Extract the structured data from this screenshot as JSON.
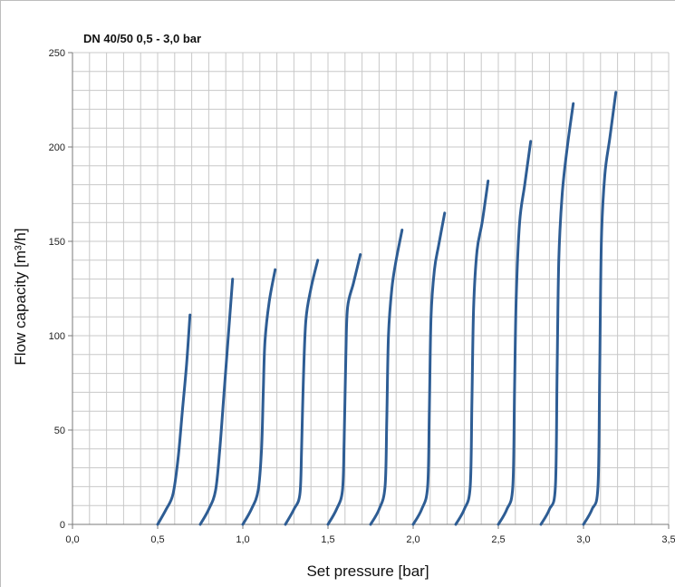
{
  "chart_data": {
    "type": "line",
    "title": "DN 40/50 0,5 - 3,0 bar",
    "xlabel": "Set pressure   [bar]",
    "ylabel": "Flow capacity   [m³/h]",
    "xlim": [
      0,
      3.5
    ],
    "ylim": [
      0,
      250
    ],
    "x_ticks": [
      0,
      0.5,
      1.0,
      1.5,
      2.0,
      2.5,
      3.0,
      3.5
    ],
    "x_tick_labels": [
      "0,0",
      "0,5",
      "1,0",
      "1,5",
      "2,0",
      "2,5",
      "3,0",
      "3,5"
    ],
    "y_ticks": [
      0,
      50,
      100,
      150,
      200,
      250
    ],
    "y_tick_labels": [
      "0",
      "50",
      "100",
      "150",
      "200",
      "250"
    ],
    "grid": true,
    "grid_minor_x": 0.1,
    "grid_minor_y": 10,
    "legend": "none",
    "line_color": "#2e5d94",
    "series": [
      {
        "points": [
          [
            0.5,
            0
          ],
          [
            0.55,
            8
          ],
          [
            0.59,
            16
          ],
          [
            0.62,
            35
          ],
          [
            0.645,
            60
          ],
          [
            0.67,
            85
          ],
          [
            0.69,
            111
          ]
        ]
      },
      {
        "points": [
          [
            0.75,
            0
          ],
          [
            0.8,
            8
          ],
          [
            0.84,
            18
          ],
          [
            0.865,
            40
          ],
          [
            0.89,
            70
          ],
          [
            0.915,
            100
          ],
          [
            0.94,
            130
          ]
        ]
      },
      {
        "points": [
          [
            1.0,
            0
          ],
          [
            1.05,
            8
          ],
          [
            1.09,
            18
          ],
          [
            1.11,
            40
          ],
          [
            1.12,
            70
          ],
          [
            1.13,
            97
          ],
          [
            1.155,
            118
          ],
          [
            1.19,
            135
          ]
        ]
      },
      {
        "points": [
          [
            1.25,
            0
          ],
          [
            1.3,
            8
          ],
          [
            1.335,
            16
          ],
          [
            1.345,
            40
          ],
          [
            1.355,
            75
          ],
          [
            1.37,
            108
          ],
          [
            1.4,
            125
          ],
          [
            1.44,
            140
          ]
        ]
      },
      {
        "points": [
          [
            1.5,
            0
          ],
          [
            1.55,
            8
          ],
          [
            1.585,
            18
          ],
          [
            1.595,
            45
          ],
          [
            1.605,
            90
          ],
          [
            1.615,
            115
          ],
          [
            1.65,
            128
          ],
          [
            1.69,
            143
          ]
        ]
      },
      {
        "points": [
          [
            1.75,
            0
          ],
          [
            1.8,
            8
          ],
          [
            1.835,
            20
          ],
          [
            1.845,
            55
          ],
          [
            1.855,
            100
          ],
          [
            1.875,
            125
          ],
          [
            1.9,
            140
          ],
          [
            1.935,
            156
          ]
        ]
      },
      {
        "points": [
          [
            2.0,
            0
          ],
          [
            2.05,
            8
          ],
          [
            2.085,
            20
          ],
          [
            2.095,
            60
          ],
          [
            2.105,
            110
          ],
          [
            2.125,
            135
          ],
          [
            2.15,
            148
          ],
          [
            2.185,
            165
          ]
        ]
      },
      {
        "points": [
          [
            2.25,
            0
          ],
          [
            2.3,
            8
          ],
          [
            2.335,
            20
          ],
          [
            2.345,
            65
          ],
          [
            2.355,
            115
          ],
          [
            2.375,
            145
          ],
          [
            2.405,
            160
          ],
          [
            2.44,
            182
          ]
        ]
      },
      {
        "points": [
          [
            2.5,
            0
          ],
          [
            2.55,
            8
          ],
          [
            2.585,
            20
          ],
          [
            2.595,
            70
          ],
          [
            2.605,
            120
          ],
          [
            2.625,
            160
          ],
          [
            2.655,
            180
          ],
          [
            2.69,
            203
          ]
        ]
      },
      {
        "points": [
          [
            2.75,
            0
          ],
          [
            2.8,
            8
          ],
          [
            2.835,
            20
          ],
          [
            2.845,
            80
          ],
          [
            2.855,
            140
          ],
          [
            2.875,
            175
          ],
          [
            2.905,
            200
          ],
          [
            2.94,
            223
          ]
        ]
      },
      {
        "points": [
          [
            3.0,
            0
          ],
          [
            3.05,
            8
          ],
          [
            3.085,
            20
          ],
          [
            3.095,
            80
          ],
          [
            3.105,
            150
          ],
          [
            3.125,
            185
          ],
          [
            3.155,
            205
          ],
          [
            3.19,
            229
          ]
        ]
      }
    ]
  }
}
